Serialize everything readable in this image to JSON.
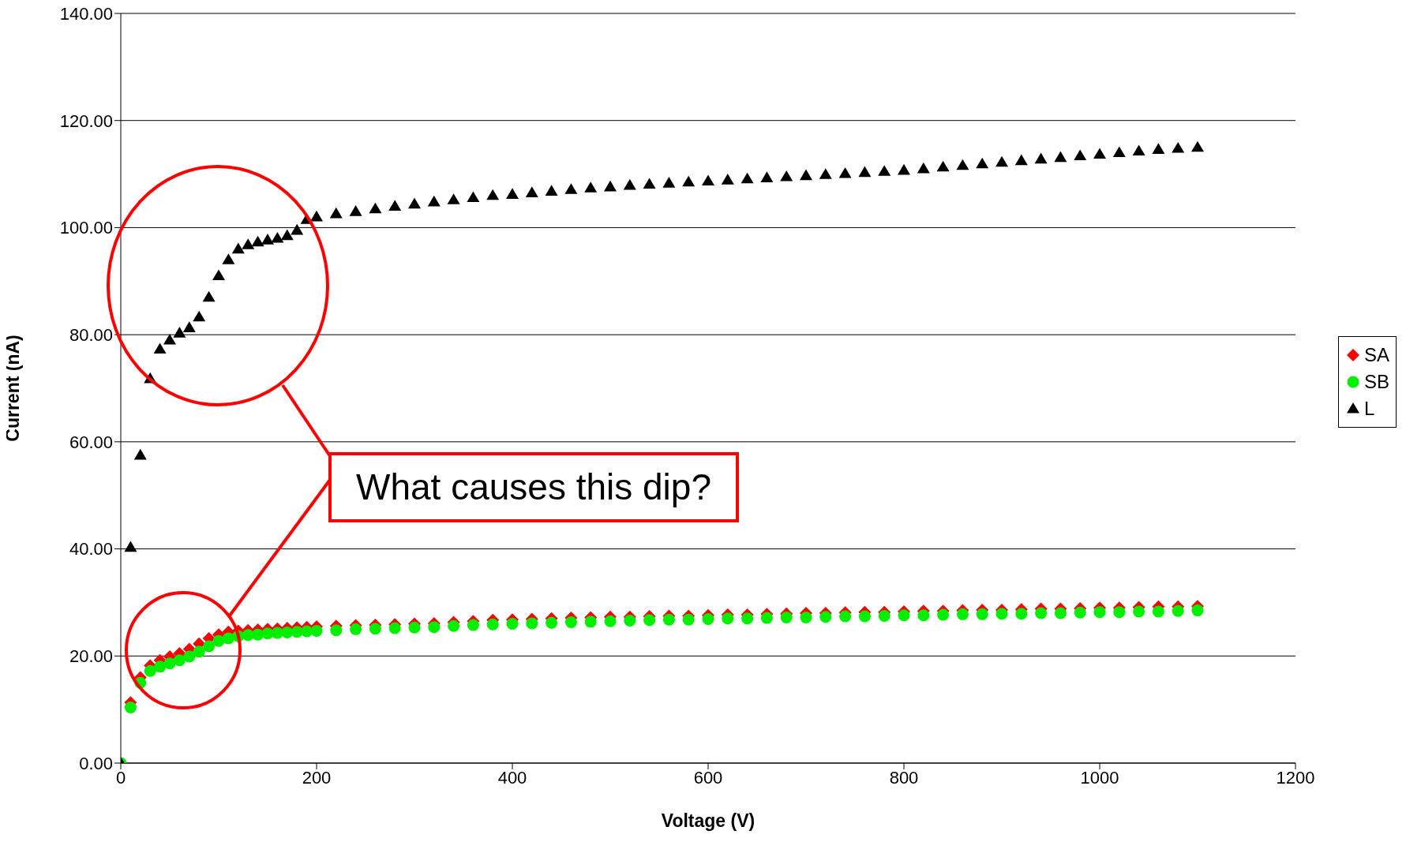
{
  "chart_data": {
    "type": "scatter",
    "xlabel": "Voltage (V)",
    "ylabel": "Current (nA)",
    "xlim": [
      0,
      1200
    ],
    "xticks": [
      0,
      200,
      400,
      600,
      800,
      1000,
      1200
    ],
    "ylim": [
      0,
      140
    ],
    "yticks": [
      {
        "value": 0,
        "label": "0.00"
      },
      {
        "value": 20,
        "label": "20.00"
      },
      {
        "value": 40,
        "label": "40.00"
      },
      {
        "value": 60,
        "label": "60.00"
      },
      {
        "value": 80,
        "label": "80.00"
      },
      {
        "value": 100,
        "label": "100.00"
      },
      {
        "value": 120,
        "label": "120.00"
      },
      {
        "value": 140,
        "label": "140.00"
      }
    ],
    "grid": "y",
    "legend": "right",
    "annotations": [
      "What causes this dip?"
    ],
    "x": [
      0,
      10,
      20,
      30,
      40,
      50,
      60,
      70,
      80,
      90,
      100,
      110,
      120,
      130,
      140,
      150,
      160,
      170,
      180,
      190,
      200,
      220,
      240,
      260,
      280,
      300,
      320,
      340,
      360,
      380,
      400,
      420,
      440,
      460,
      480,
      500,
      520,
      540,
      560,
      580,
      600,
      620,
      640,
      660,
      680,
      700,
      720,
      740,
      760,
      780,
      800,
      820,
      840,
      860,
      880,
      900,
      920,
      940,
      960,
      980,
      1000,
      1020,
      1040,
      1060,
      1080,
      1100
    ],
    "series": [
      {
        "name": "SA",
        "color": "#ff0000",
        "marker": "diamond",
        "values": [
          null,
          11.3,
          16,
          18.2,
          19.2,
          19.9,
          20.5,
          21.3,
          22.3,
          23.3,
          24,
          24.5,
          24.7,
          24.8,
          24.9,
          25,
          25.1,
          25.2,
          25.3,
          25.4,
          25.5,
          25.6,
          25.7,
          25.8,
          25.9,
          26,
          26.1,
          26.3,
          26.5,
          26.7,
          26.8,
          26.9,
          27,
          27.1,
          27.2,
          27.3,
          27.3,
          27.4,
          27.5,
          27.5,
          27.6,
          27.7,
          27.7,
          27.8,
          27.9,
          28,
          28,
          28.1,
          28.2,
          28.2,
          28.3,
          28.4,
          28.4,
          28.5,
          28.6,
          28.6,
          28.7,
          28.8,
          28.8,
          28.9,
          29,
          29,
          29.1,
          29.2,
          29.2,
          29.3
        ]
      },
      {
        "name": "SB",
        "color": "#00ee00",
        "marker": "circle",
        "values": [
          0,
          10.4,
          15,
          17.2,
          18,
          18.6,
          19.2,
          19.9,
          20.8,
          21.8,
          22.8,
          23.3,
          23.7,
          23.9,
          24,
          24.2,
          24.3,
          24.4,
          24.5,
          24.6,
          24.7,
          24.8,
          25,
          25.1,
          25.2,
          25.3,
          25.4,
          25.6,
          25.8,
          25.9,
          26,
          26.1,
          26.2,
          26.3,
          26.4,
          26.5,
          26.6,
          26.7,
          26.8,
          26.8,
          26.9,
          27,
          27,
          27.1,
          27.2,
          27.2,
          27.3,
          27.4,
          27.4,
          27.5,
          27.6,
          27.6,
          27.7,
          27.8,
          27.8,
          27.9,
          27.9,
          28,
          28,
          28.1,
          28.2,
          28.2,
          28.3,
          28.3,
          28.4,
          28.5
        ]
      },
      {
        "name": "L",
        "color": "#000000",
        "marker": "triangle",
        "values": [
          0,
          40.3,
          57.5,
          71.8,
          77.3,
          79,
          80.3,
          81.3,
          83.3,
          87,
          91,
          94,
          96,
          96.8,
          97.3,
          97.7,
          98,
          98.5,
          99.5,
          101.5,
          102,
          102.6,
          103,
          103.5,
          104,
          104.4,
          104.8,
          105.2,
          105.6,
          106,
          106.2,
          106.5,
          106.8,
          107.1,
          107.4,
          107.6,
          107.9,
          108.1,
          108.3,
          108.5,
          108.7,
          108.9,
          109.1,
          109.3,
          109.5,
          109.7,
          109.9,
          110.1,
          110.3,
          110.5,
          110.7,
          111,
          111.3,
          111.6,
          111.9,
          112.2,
          112.5,
          112.8,
          113.1,
          113.4,
          113.7,
          114,
          114.3,
          114.6,
          114.8,
          115
        ]
      }
    ]
  }
}
